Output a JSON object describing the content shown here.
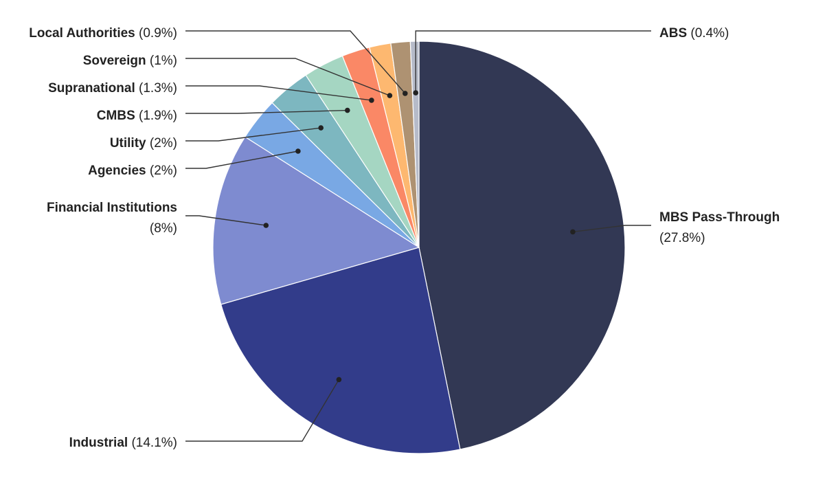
{
  "chart_data": {
    "type": "pie",
    "title": "",
    "slices": [
      {
        "label": "MBS Pass-Through",
        "value": 27.8,
        "value_label": "(27.8%)",
        "color": "#323854"
      },
      {
        "label": "Industrial",
        "value": 14.1,
        "value_label": "(14.1%)",
        "color": "#323C8A"
      },
      {
        "label": "Financial Institutions",
        "value": 8,
        "value_label": "(8%)",
        "color": "#7E8BD0"
      },
      {
        "label": "Agencies",
        "value": 2,
        "value_label": "(2%)",
        "color": "#79A8E4"
      },
      {
        "label": "Utility",
        "value": 2,
        "value_label": "(2%)",
        "color": "#7DB7C0"
      },
      {
        "label": "CMBS",
        "value": 1.9,
        "value_label": "(1.9%)",
        "color": "#A5D6C2"
      },
      {
        "label": "Supranational",
        "value": 1.3,
        "value_label": "(1.3%)",
        "color": "#FA8866"
      },
      {
        "label": "Sovereign",
        "value": 1,
        "value_label": "(1%)",
        "color": "#FDB870"
      },
      {
        "label": "Local Authorities",
        "value": 0.9,
        "value_label": "(0.9%)",
        "color": "#AE9272"
      },
      {
        "label": "ABS",
        "value": 0.4,
        "value_label": "(0.4%)",
        "color": "#B6BBC9"
      }
    ]
  }
}
